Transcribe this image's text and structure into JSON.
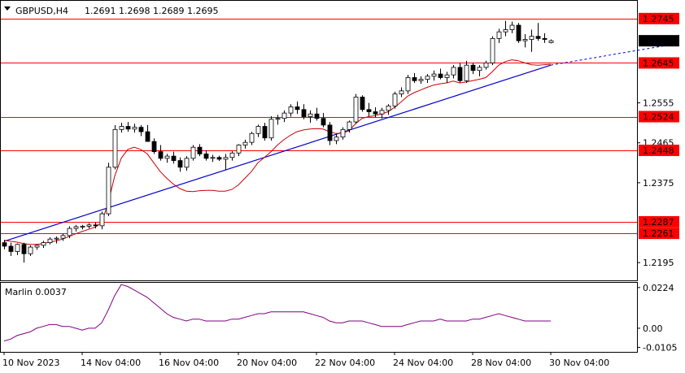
{
  "header": {
    "symbol": "GBPUSD,H4",
    "ohlc": "1.2691 1.2698 1.2689 1.2695"
  },
  "indicator": {
    "label": "Marlin 0.0037"
  },
  "colors": {
    "level": "#ff0000",
    "level_box": "#ff0000",
    "price_box": "#000000",
    "trend": "#0000cc",
    "ma": "#cc0000",
    "osc": "#800080",
    "bull": "#ffffff",
    "bear": "#000000",
    "grid": "#000000"
  },
  "chart_data": [
    {
      "type": "candlestick",
      "title": "GBPUSD,H4",
      "ylim": [
        1.2155,
        1.2785
      ],
      "price_ticks": [
        "1.2195",
        "1.2375",
        "1.2465",
        "1.2555"
      ],
      "x_ticks": [
        "10 Nov 2023",
        "14 Nov 04:00",
        "16 Nov 04:00",
        "20 Nov 04:00",
        "22 Nov 04:00",
        "24 Nov 04:00",
        "28 Nov 04:00",
        "30 Nov 04:00"
      ],
      "levels": [
        "1.2745",
        "1.2645",
        "1.2524",
        "1.2448",
        "1.2287",
        "1.2261"
      ],
      "current_price": "1.2695",
      "candles": [
        [
          1.224,
          1.2246,
          1.2225,
          1.2232
        ],
        [
          1.2232,
          1.224,
          1.221,
          1.222
        ],
        [
          1.222,
          1.2238,
          1.2212,
          1.2236
        ],
        [
          1.2236,
          1.224,
          1.2195,
          1.2215
        ],
        [
          1.2215,
          1.2234,
          1.221,
          1.223
        ],
        [
          1.223,
          1.2236,
          1.2224,
          1.2234
        ],
        [
          1.2234,
          1.2244,
          1.2228,
          1.224
        ],
        [
          1.224,
          1.2252,
          1.2236,
          1.2248
        ],
        [
          1.2248,
          1.2254,
          1.2238,
          1.225
        ],
        [
          1.225,
          1.226,
          1.2244,
          1.2256
        ],
        [
          1.2256,
          1.2277,
          1.225,
          1.2272
        ],
        [
          1.2272,
          1.228,
          1.2265,
          1.2276
        ],
        [
          1.2276,
          1.228,
          1.227,
          1.2277
        ],
        [
          1.2277,
          1.2284,
          1.2272,
          1.228
        ],
        [
          1.228,
          1.2285,
          1.2272,
          1.2278
        ],
        [
          1.2278,
          1.231,
          1.227,
          1.2305
        ],
        [
          1.2305,
          1.242,
          1.23,
          1.241
        ],
        [
          1.241,
          1.2505,
          1.2405,
          1.2495
        ],
        [
          1.2495,
          1.251,
          1.2488,
          1.2502
        ],
        [
          1.2502,
          1.2512,
          1.249,
          1.2496
        ],
        [
          1.2496,
          1.2508,
          1.2488,
          1.25
        ],
        [
          1.25,
          1.2505,
          1.248,
          1.249
        ],
        [
          1.249,
          1.2505,
          1.247,
          1.2468
        ],
        [
          1.2468,
          1.2475,
          1.244,
          1.2445
        ],
        [
          1.2445,
          1.246,
          1.2425,
          1.243
        ],
        [
          1.243,
          1.244,
          1.242,
          1.2435
        ],
        [
          1.2435,
          1.2445,
          1.2418,
          1.2425
        ],
        [
          1.2425,
          1.2432,
          1.24,
          1.241
        ],
        [
          1.241,
          1.2435,
          1.2402,
          1.243
        ],
        [
          1.243,
          1.246,
          1.2425,
          1.2455
        ],
        [
          1.2455,
          1.2462,
          1.2435,
          1.244
        ],
        [
          1.244,
          1.2448,
          1.2425,
          1.243
        ],
        [
          1.243,
          1.2438,
          1.2422,
          1.2432
        ],
        [
          1.2432,
          1.2436,
          1.2424,
          1.2428
        ],
        [
          1.2428,
          1.244,
          1.2405,
          1.2432
        ],
        [
          1.2432,
          1.2446,
          1.2425,
          1.2442
        ],
        [
          1.2442,
          1.2462,
          1.2435,
          1.246
        ],
        [
          1.246,
          1.2472,
          1.2452,
          1.2466
        ],
        [
          1.2466,
          1.249,
          1.246,
          1.2486
        ],
        [
          1.2486,
          1.2506,
          1.2478,
          1.2502
        ],
        [
          1.2502,
          1.251,
          1.247,
          1.2476
        ],
        [
          1.2476,
          1.2525,
          1.247,
          1.2518
        ],
        [
          1.2518,
          1.2528,
          1.2506,
          1.252
        ],
        [
          1.252,
          1.2538,
          1.2512,
          1.2532
        ],
        [
          1.2532,
          1.2552,
          1.2524,
          1.2546
        ],
        [
          1.2546,
          1.2558,
          1.253,
          1.254
        ],
        [
          1.254,
          1.2552,
          1.2518,
          1.2524
        ],
        [
          1.2524,
          1.2538,
          1.251,
          1.253
        ],
        [
          1.253,
          1.2544,
          1.2515,
          1.252
        ],
        [
          1.252,
          1.2532,
          1.25,
          1.2505
        ],
        [
          1.2505,
          1.2512,
          1.246,
          1.247
        ],
        [
          1.247,
          1.2485,
          1.2462,
          1.2478
        ],
        [
          1.2478,
          1.25,
          1.2472,
          1.2495
        ],
        [
          1.2495,
          1.2515,
          1.2488,
          1.2512
        ],
        [
          1.2512,
          1.2575,
          1.2508,
          1.2568
        ],
        [
          1.2568,
          1.2572,
          1.2535,
          1.254
        ],
        [
          1.254,
          1.2555,
          1.2525,
          1.2535
        ],
        [
          1.2535,
          1.2545,
          1.2522,
          1.253
        ],
        [
          1.253,
          1.2544,
          1.252,
          1.2538
        ],
        [
          1.2538,
          1.2552,
          1.2528,
          1.2548
        ],
        [
          1.2548,
          1.258,
          1.2542,
          1.2575
        ],
        [
          1.2575,
          1.259,
          1.2568,
          1.2582
        ],
        [
          1.2582,
          1.2618,
          1.2575,
          1.2612
        ],
        [
          1.2612,
          1.2622,
          1.26,
          1.2605
        ],
        [
          1.2605,
          1.2615,
          1.2598,
          1.2608
        ],
        [
          1.2608,
          1.262,
          1.26,
          1.2615
        ],
        [
          1.2615,
          1.2628,
          1.2605,
          1.262
        ],
        [
          1.262,
          1.2632,
          1.2608,
          1.2612
        ],
        [
          1.2612,
          1.2625,
          1.26,
          1.2618
        ],
        [
          1.2618,
          1.264,
          1.261,
          1.2635
        ],
        [
          1.2635,
          1.2645,
          1.26,
          1.2605
        ],
        [
          1.2605,
          1.265,
          1.26,
          1.264
        ],
        [
          1.264,
          1.2645,
          1.262,
          1.2628
        ],
        [
          1.2628,
          1.264,
          1.2615,
          1.2635
        ],
        [
          1.2635,
          1.265,
          1.263,
          1.2645
        ],
        [
          1.2645,
          1.2705,
          1.264,
          1.27
        ],
        [
          1.27,
          1.2722,
          1.269,
          1.2715
        ],
        [
          1.2715,
          1.274,
          1.2705,
          1.272
        ],
        [
          1.272,
          1.2738,
          1.2712,
          1.273
        ],
        [
          1.273,
          1.2735,
          1.269,
          1.2695
        ],
        [
          1.2695,
          1.271,
          1.268,
          1.2698
        ],
        [
          1.2698,
          1.272,
          1.267,
          1.2705
        ],
        [
          1.2705,
          1.2735,
          1.2695,
          1.27
        ],
        [
          1.27,
          1.2712,
          1.269,
          1.2698
        ],
        [
          1.2691,
          1.2698,
          1.2689,
          1.2695
        ]
      ],
      "ma": [
        1.2245,
        1.2243,
        1.2241,
        1.2238,
        1.2236,
        1.2236,
        1.2238,
        1.2241,
        1.2244,
        1.2248,
        1.2254,
        1.226,
        1.2265,
        1.227,
        1.2275,
        1.2285,
        1.233,
        1.239,
        1.243,
        1.245,
        1.2455,
        1.245,
        1.244,
        1.242,
        1.24,
        1.2385,
        1.2372,
        1.2362,
        1.2356,
        1.2355,
        1.2357,
        1.2358,
        1.2358,
        1.2356,
        1.2356,
        1.236,
        1.237,
        1.2385,
        1.24,
        1.242,
        1.2432,
        1.2445,
        1.246,
        1.2472,
        1.2482,
        1.249,
        1.2494,
        1.2496,
        1.2497,
        1.2496,
        1.249,
        1.2486,
        1.2487,
        1.2492,
        1.2508,
        1.252,
        1.2524,
        1.2526,
        1.253,
        1.2535,
        1.2545,
        1.2557,
        1.257,
        1.2578,
        1.2584,
        1.259,
        1.2595,
        1.2598,
        1.26,
        1.2604,
        1.26,
        1.2602,
        1.2605,
        1.2608,
        1.2612,
        1.2625,
        1.264,
        1.2648,
        1.2652,
        1.265,
        1.2645,
        1.2641,
        1.264,
        1.2641,
        1.2642
      ],
      "trend": {
        "from": [
          0,
          1.2243
        ],
        "to": [
          84,
          1.264
        ],
        "dashed_to": [
          102,
          1.2685
        ]
      },
      "oscillator": {
        "name": "Marlin",
        "value": "0.0037",
        "ylim": [
          -0.013,
          0.025
        ],
        "ticks": [
          "0.0224",
          "0.00",
          "-0.0105"
        ],
        "values": [
          -0.007,
          -0.006,
          -0.004,
          -0.003,
          -0.002,
          0.0,
          0.001,
          0.002,
          0.002,
          0.001,
          0.001,
          0.0,
          -0.001,
          0.0,
          0.0,
          0.003,
          0.01,
          0.018,
          0.024,
          0.023,
          0.021,
          0.019,
          0.017,
          0.014,
          0.011,
          0.008,
          0.006,
          0.005,
          0.004,
          0.005,
          0.005,
          0.004,
          0.004,
          0.004,
          0.004,
          0.005,
          0.005,
          0.006,
          0.007,
          0.008,
          0.008,
          0.009,
          0.009,
          0.009,
          0.009,
          0.009,
          0.009,
          0.008,
          0.007,
          0.006,
          0.004,
          0.003,
          0.003,
          0.004,
          0.004,
          0.004,
          0.003,
          0.002,
          0.001,
          0.001,
          0.001,
          0.001,
          0.002,
          0.003,
          0.004,
          0.004,
          0.004,
          0.005,
          0.004,
          0.004,
          0.004,
          0.004,
          0.005,
          0.005,
          0.006,
          0.007,
          0.008,
          0.007,
          0.006,
          0.005,
          0.004,
          0.004,
          0.004,
          0.004,
          0.004
        ]
      }
    }
  ]
}
